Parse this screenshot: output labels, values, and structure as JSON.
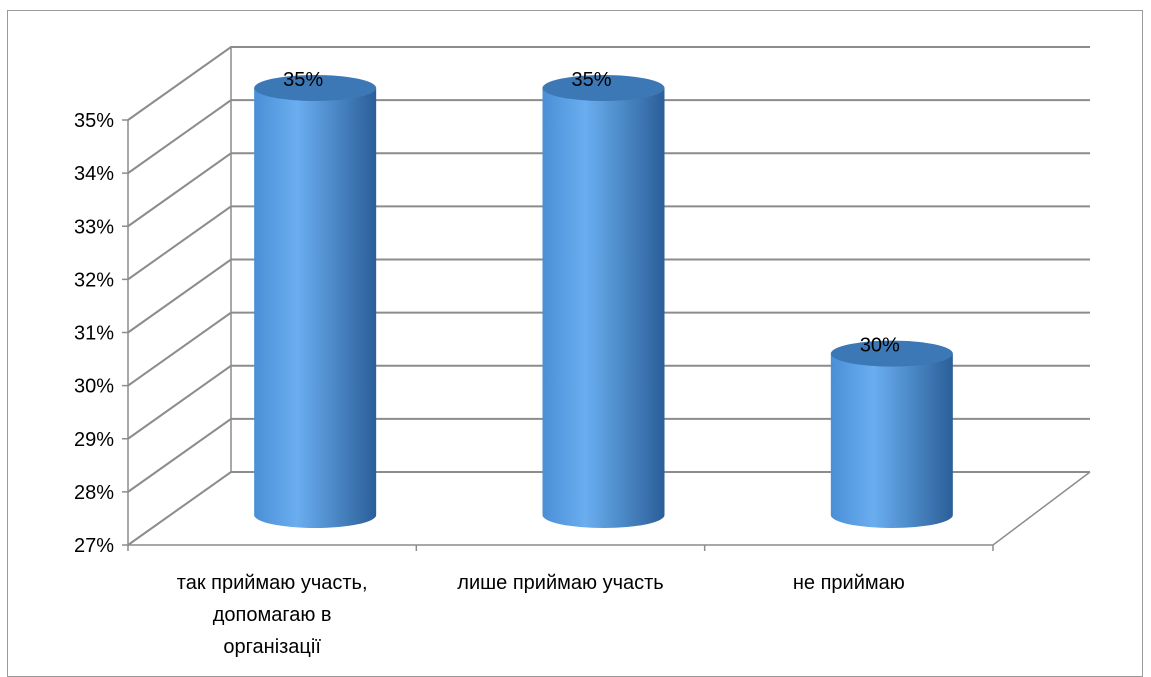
{
  "chart_data": {
    "type": "bar",
    "style": "3d-cylinder",
    "categories": [
      [
        "так приймаю участь,",
        "допомагаю в",
        "організації"
      ],
      [
        "лише приймаю участь"
      ],
      [
        "не приймаю"
      ]
    ],
    "values": [
      35,
      35,
      30
    ],
    "data_labels": [
      "35%",
      "35%",
      "30%"
    ],
    "y_ticks": [
      "27%",
      "28%",
      "29%",
      "30%",
      "31%",
      "32%",
      "33%",
      "34%",
      "35%"
    ],
    "ylim": [
      27,
      35
    ],
    "y_unit": "%",
    "title": "",
    "xlabel": "",
    "ylabel": "",
    "grid": true,
    "legend": "none",
    "colors": {
      "bar_light": "#6aaef0",
      "bar_mid": "#4a8fd6",
      "bar_dark": "#2a5f99",
      "bar_top": "#3d78b6",
      "grid": "#8c8c8c",
      "frame": "#9a9a9a"
    }
  }
}
